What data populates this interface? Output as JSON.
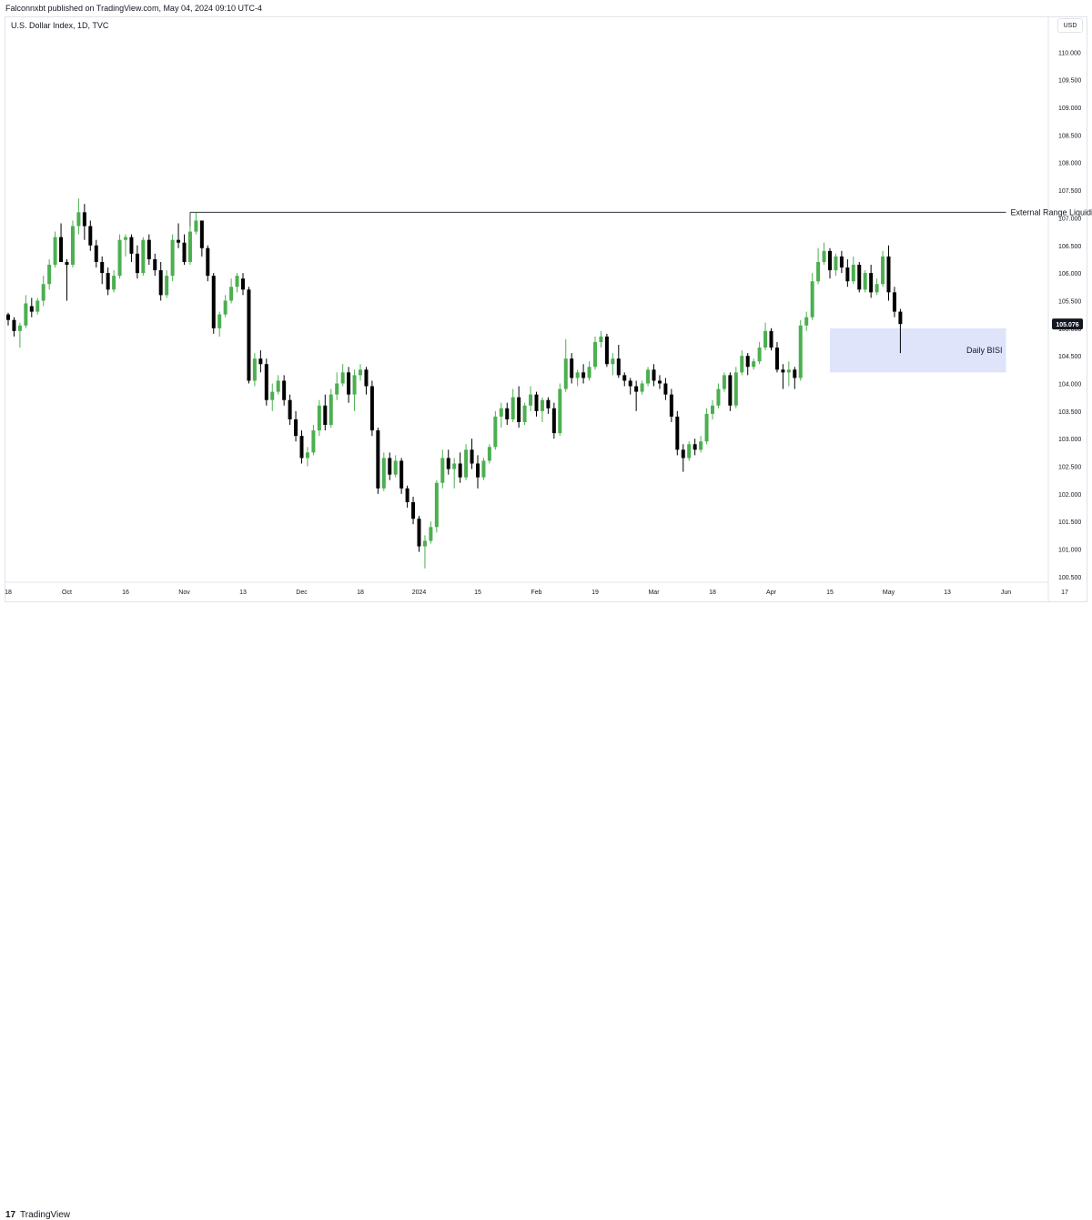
{
  "header": {
    "published_text": "Falconnxbt published on TradingView.com, May 04, 2024 09:10 UTC-4",
    "symbol": "U.S. Dollar Index, 1D, TVC",
    "currency": "USD"
  },
  "footer": {
    "logo_glyph": "17",
    "logo_text": "TradingView"
  },
  "colors": {
    "up": "#4caf50",
    "down": "#000000",
    "level_line": "#131722",
    "fvg_fill": "#dfe4fb",
    "price_label_bg": "#131722"
  },
  "chart_data": {
    "type": "candlestick",
    "title": "U.S. Dollar Index, 1D, TVC",
    "y_axis": {
      "side": "right",
      "range": [
        100.4,
        110.45
      ],
      "ticks": [
        "110.000",
        "109.500",
        "109.000",
        "108.500",
        "108.000",
        "107.500",
        "107.000",
        "106.500",
        "106.000",
        "105.500",
        "105.000",
        "104.500",
        "104.000",
        "103.500",
        "103.000",
        "102.500",
        "102.000",
        "101.500",
        "101.000",
        "100.500"
      ]
    },
    "x_axis": {
      "ticks": [
        "18",
        "Oct",
        "16",
        "Nov",
        "13",
        "Dec",
        "18",
        "2024",
        "15",
        "Feb",
        "19",
        "Mar",
        "18",
        "Apr",
        "15",
        "May",
        "13",
        "Jun",
        "17"
      ],
      "tick_index": [
        0,
        10,
        20,
        30,
        40,
        50,
        60,
        70,
        80,
        90,
        100,
        110,
        120,
        130,
        140,
        150,
        160,
        170,
        180
      ]
    },
    "grid": false,
    "candles_ohlc": [
      [
        105.25,
        105.28,
        105.05,
        105.15
      ],
      [
        105.15,
        105.2,
        104.85,
        104.95
      ],
      [
        104.95,
        105.1,
        104.65,
        105.05
      ],
      [
        105.05,
        105.6,
        105.0,
        105.45
      ],
      [
        105.4,
        105.55,
        105.2,
        105.3
      ],
      [
        105.3,
        105.55,
        105.25,
        105.5
      ],
      [
        105.5,
        105.95,
        105.4,
        105.8
      ],
      [
        105.8,
        106.25,
        105.7,
        106.15
      ],
      [
        106.15,
        106.75,
        106.1,
        106.65
      ],
      [
        106.65,
        106.9,
        106.55,
        106.2
      ],
      [
        106.2,
        106.25,
        105.5,
        106.15
      ],
      [
        106.15,
        106.95,
        106.1,
        106.85
      ],
      [
        106.85,
        107.35,
        106.7,
        107.1
      ],
      [
        107.1,
        107.25,
        106.6,
        106.85
      ],
      [
        106.85,
        106.95,
        106.4,
        106.5
      ],
      [
        106.5,
        106.6,
        106.1,
        106.2
      ],
      [
        106.2,
        106.3,
        105.8,
        106.0
      ],
      [
        106.0,
        106.1,
        105.6,
        105.7
      ],
      [
        105.7,
        106.05,
        105.65,
        105.95
      ],
      [
        105.95,
        106.7,
        105.9,
        106.6
      ],
      [
        106.6,
        106.7,
        106.3,
        106.65
      ],
      [
        106.65,
        106.7,
        106.2,
        106.35
      ],
      [
        106.35,
        106.5,
        105.9,
        106.0
      ],
      [
        106.0,
        106.65,
        105.95,
        106.6
      ],
      [
        106.6,
        106.7,
        106.15,
        106.25
      ],
      [
        106.25,
        106.35,
        105.95,
        106.05
      ],
      [
        106.05,
        106.2,
        105.5,
        105.6
      ],
      [
        105.6,
        106.05,
        105.55,
        105.95
      ],
      [
        105.95,
        106.7,
        105.85,
        106.6
      ],
      [
        106.6,
        106.9,
        106.45,
        106.55
      ],
      [
        106.55,
        106.7,
        106.15,
        106.2
      ],
      [
        106.2,
        106.85,
        106.15,
        106.75
      ],
      [
        106.75,
        107.1,
        106.7,
        106.95
      ],
      [
        106.95,
        106.55,
        106.3,
        106.45
      ],
      [
        106.45,
        106.5,
        105.85,
        105.95
      ],
      [
        105.95,
        106.0,
        104.9,
        105.0
      ],
      [
        105.0,
        105.3,
        104.85,
        105.25
      ],
      [
        105.25,
        105.6,
        105.2,
        105.5
      ],
      [
        105.5,
        105.9,
        105.45,
        105.75
      ],
      [
        105.75,
        106.0,
        105.65,
        105.95
      ],
      [
        105.9,
        106.0,
        105.6,
        105.7
      ],
      [
        105.7,
        105.75,
        104.0,
        104.05
      ],
      [
        104.05,
        104.55,
        103.95,
        104.45
      ],
      [
        104.45,
        104.6,
        104.2,
        104.35
      ],
      [
        104.35,
        104.45,
        103.6,
        103.7
      ],
      [
        103.7,
        104.0,
        103.5,
        103.85
      ],
      [
        103.85,
        104.15,
        103.8,
        104.05
      ],
      [
        104.05,
        104.15,
        103.6,
        103.7
      ],
      [
        103.7,
        103.8,
        103.25,
        103.35
      ],
      [
        103.35,
        103.5,
        102.95,
        103.05
      ],
      [
        103.05,
        103.15,
        102.55,
        102.65
      ],
      [
        102.65,
        102.85,
        102.5,
        102.75
      ],
      [
        102.75,
        103.25,
        102.7,
        103.15
      ],
      [
        103.15,
        103.7,
        103.05,
        103.6
      ],
      [
        103.6,
        103.8,
        103.15,
        103.25
      ],
      [
        103.25,
        103.9,
        103.2,
        103.8
      ],
      [
        103.8,
        104.2,
        103.7,
        104.0
      ],
      [
        104.0,
        104.35,
        103.95,
        104.2
      ],
      [
        104.2,
        104.3,
        103.65,
        103.8
      ],
      [
        103.8,
        104.25,
        103.5,
        104.15
      ],
      [
        104.15,
        104.35,
        104.05,
        104.25
      ],
      [
        104.25,
        104.3,
        103.8,
        103.95
      ],
      [
        103.95,
        104.05,
        103.05,
        103.15
      ],
      [
        103.15,
        103.2,
        102.0,
        102.1
      ],
      [
        102.1,
        102.75,
        102.05,
        102.65
      ],
      [
        102.65,
        102.75,
        102.25,
        102.35
      ],
      [
        102.35,
        102.7,
        102.3,
        102.6
      ],
      [
        102.6,
        102.65,
        102.0,
        102.1
      ],
      [
        102.1,
        102.15,
        101.75,
        101.85
      ],
      [
        101.85,
        101.95,
        101.45,
        101.55
      ],
      [
        101.55,
        101.6,
        100.95,
        101.05
      ],
      [
        101.05,
        101.25,
        100.65,
        101.15
      ],
      [
        101.15,
        101.5,
        101.1,
        101.4
      ],
      [
        101.4,
        102.25,
        101.3,
        102.2
      ],
      [
        102.2,
        102.8,
        102.1,
        102.65
      ],
      [
        102.65,
        102.8,
        102.35,
        102.45
      ],
      [
        102.45,
        102.65,
        102.1,
        102.55
      ],
      [
        102.55,
        102.75,
        102.2,
        102.3
      ],
      [
        102.3,
        102.9,
        102.25,
        102.8
      ],
      [
        102.8,
        103.0,
        102.45,
        102.55
      ],
      [
        102.55,
        102.7,
        102.1,
        102.3
      ],
      [
        102.3,
        102.65,
        102.25,
        102.6
      ],
      [
        102.6,
        102.9,
        102.55,
        102.85
      ],
      [
        102.85,
        103.5,
        102.8,
        103.4
      ],
      [
        103.4,
        103.65,
        103.2,
        103.55
      ],
      [
        103.55,
        103.65,
        103.25,
        103.35
      ],
      [
        103.35,
        103.9,
        103.3,
        103.75
      ],
      [
        103.75,
        103.95,
        103.2,
        103.3
      ],
      [
        103.3,
        103.65,
        103.25,
        103.6
      ],
      [
        103.6,
        103.95,
        103.5,
        103.8
      ],
      [
        103.8,
        103.85,
        103.4,
        103.5
      ],
      [
        103.5,
        103.75,
        103.3,
        103.7
      ],
      [
        103.7,
        103.75,
        103.45,
        103.55
      ],
      [
        103.55,
        103.65,
        103.0,
        103.1
      ],
      [
        103.1,
        104.0,
        103.05,
        103.9
      ],
      [
        103.9,
        104.8,
        103.85,
        104.45
      ],
      [
        104.45,
        104.55,
        104.0,
        104.1
      ],
      [
        104.1,
        104.25,
        103.95,
        104.2
      ],
      [
        104.2,
        104.35,
        104.0,
        104.1
      ],
      [
        104.1,
        104.4,
        104.05,
        104.3
      ],
      [
        104.3,
        104.85,
        104.25,
        104.75
      ],
      [
        104.75,
        104.95,
        104.65,
        104.85
      ],
      [
        104.85,
        104.9,
        104.3,
        104.35
      ],
      [
        104.35,
        104.55,
        104.15,
        104.45
      ],
      [
        104.45,
        104.7,
        104.1,
        104.15
      ],
      [
        104.15,
        104.2,
        103.95,
        104.05
      ],
      [
        104.05,
        104.1,
        103.8,
        103.95
      ],
      [
        103.95,
        104.05,
        103.5,
        103.85
      ],
      [
        103.85,
        104.05,
        103.8,
        104.0
      ],
      [
        104.0,
        104.3,
        103.95,
        104.25
      ],
      [
        104.25,
        104.35,
        103.95,
        104.05
      ],
      [
        104.05,
        104.15,
        103.9,
        104.0
      ],
      [
        104.0,
        104.1,
        103.7,
        103.8
      ],
      [
        103.8,
        103.9,
        103.3,
        103.4
      ],
      [
        103.4,
        103.5,
        102.7,
        102.8
      ],
      [
        102.8,
        102.9,
        102.4,
        102.65
      ],
      [
        102.65,
        102.95,
        102.6,
        102.9
      ],
      [
        102.9,
        103.0,
        102.7,
        102.8
      ],
      [
        102.8,
        103.05,
        102.75,
        102.95
      ],
      [
        102.95,
        103.55,
        102.9,
        103.45
      ],
      [
        103.45,
        103.7,
        103.35,
        103.6
      ],
      [
        103.6,
        104.0,
        103.55,
        103.9
      ],
      [
        103.9,
        104.2,
        103.85,
        104.15
      ],
      [
        104.15,
        104.2,
        103.5,
        103.6
      ],
      [
        103.6,
        104.3,
        103.55,
        104.2
      ],
      [
        104.2,
        104.6,
        104.15,
        104.5
      ],
      [
        104.5,
        104.55,
        104.15,
        104.3
      ],
      [
        104.3,
        104.45,
        104.25,
        104.4
      ],
      [
        104.4,
        104.75,
        104.35,
        104.65
      ],
      [
        104.65,
        105.1,
        104.6,
        104.95
      ],
      [
        104.95,
        105.0,
        104.6,
        104.65
      ],
      [
        104.65,
        104.75,
        104.2,
        104.25
      ],
      [
        104.25,
        104.35,
        103.9,
        104.2
      ],
      [
        104.2,
        104.4,
        103.95,
        104.25
      ],
      [
        104.25,
        104.3,
        103.9,
        104.1
      ],
      [
        104.1,
        105.15,
        104.05,
        105.05
      ],
      [
        105.05,
        105.3,
        104.95,
        105.2
      ],
      [
        105.2,
        106.0,
        105.15,
        105.85
      ],
      [
        105.85,
        106.45,
        105.8,
        106.2
      ],
      [
        106.2,
        106.55,
        106.15,
        106.4
      ],
      [
        106.4,
        106.45,
        105.9,
        106.05
      ],
      [
        106.05,
        106.35,
        105.95,
        106.3
      ],
      [
        106.3,
        106.4,
        106.0,
        106.1
      ],
      [
        106.1,
        106.25,
        105.75,
        105.85
      ],
      [
        105.85,
        106.3,
        105.8,
        106.15
      ],
      [
        106.15,
        106.2,
        105.65,
        105.7
      ],
      [
        105.7,
        106.05,
        105.65,
        106.0
      ],
      [
        106.0,
        106.15,
        105.55,
        105.65
      ],
      [
        105.65,
        105.9,
        105.6,
        105.8
      ],
      [
        105.8,
        106.4,
        105.75,
        106.3
      ],
      [
        106.3,
        106.5,
        105.5,
        105.65
      ],
      [
        105.65,
        105.75,
        105.2,
        105.3
      ],
      [
        105.3,
        105.35,
        104.55,
        105.076
      ]
    ],
    "levels": [
      {
        "label": "External Range Liquidity",
        "price": 107.1,
        "from_index": 31,
        "to_index": 170
      }
    ],
    "zones": [
      {
        "label": "Daily BISI",
        "top": 105.0,
        "bottom": 104.2,
        "from_index": 140,
        "to_index": 170
      }
    ],
    "last_price_label": "105.076",
    "last_price": 105.076
  }
}
